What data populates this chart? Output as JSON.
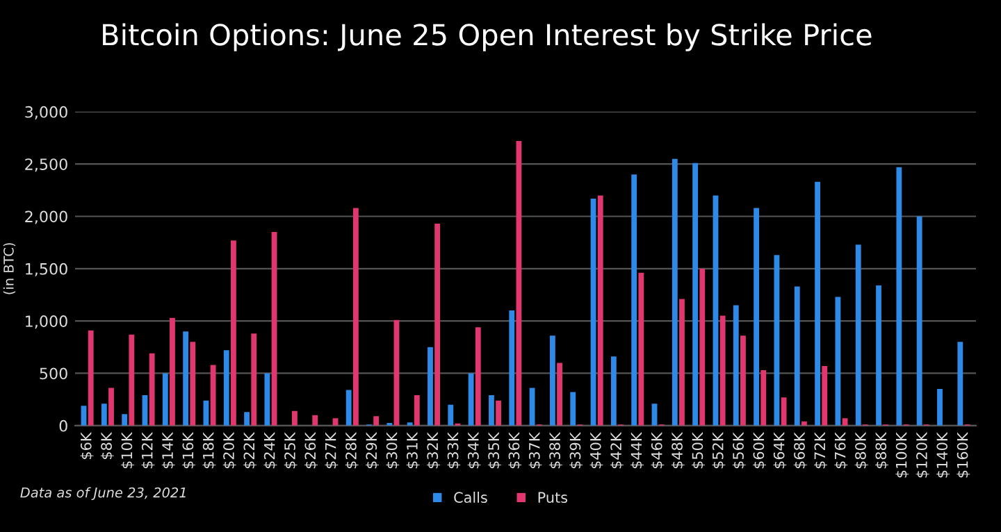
{
  "chart_data": {
    "type": "bar",
    "title": "Bitcoin Options: June 25 Open Interest by Strike Price",
    "ylabel": "(in BTC)",
    "categories": [
      "$6K",
      "$8K",
      "$10K",
      "$12K",
      "$14K",
      "$16K",
      "$18K",
      "$20K",
      "$22K",
      "$24K",
      "$25K",
      "$26K",
      "$27K",
      "$28K",
      "$29K",
      "$30K",
      "$31K",
      "$32K",
      "$33K",
      "$34K",
      "$35K",
      "$36K",
      "$37K",
      "$38K",
      "$39K",
      "$40K",
      "$42K",
      "$44K",
      "$46K",
      "$48K",
      "$50K",
      "$52K",
      "$56K",
      "$60K",
      "$64K",
      "$68K",
      "$72K",
      "$76K",
      "$80K",
      "$88K",
      "$100K",
      "$120K",
      "$140K",
      "$160K"
    ],
    "series": [
      {
        "name": "Calls",
        "color": "#2e8ae6",
        "values": [
          190,
          210,
          110,
          290,
          500,
          900,
          240,
          720,
          130,
          500,
          0,
          0,
          0,
          340,
          10,
          25,
          30,
          750,
          200,
          500,
          290,
          1100,
          360,
          860,
          320,
          2170,
          660,
          2400,
          210,
          2550,
          2510,
          2200,
          1150,
          2080,
          1630,
          1330,
          2330,
          1230,
          1730,
          1340,
          2470,
          2000,
          350,
          800
        ]
      },
      {
        "name": "Puts",
        "color": "#e0386e",
        "values": [
          910,
          360,
          870,
          690,
          1030,
          800,
          580,
          1770,
          880,
          1850,
          140,
          100,
          70,
          2080,
          90,
          1010,
          290,
          1930,
          20,
          940,
          240,
          2720,
          10,
          600,
          10,
          2200,
          10,
          1460,
          10,
          1210,
          1500,
          1050,
          860,
          530,
          270,
          40,
          570,
          70,
          10,
          10,
          10,
          10,
          0,
          10
        ]
      }
    ],
    "ylim": [
      0,
      3000
    ],
    "yticks": [
      0,
      500,
      {
        "value": 1000,
        "label": "1,000"
      },
      {
        "value": 1500,
        "label": "1,500"
      },
      {
        "value": 2000,
        "label": "2,000"
      },
      {
        "value": 2500,
        "label": "2,500"
      },
      {
        "value": 3000,
        "label": "3,000"
      }
    ],
    "grid": "y",
    "legend": "bottom",
    "annotations": [
      "Data as of June 23, 2021"
    ]
  }
}
